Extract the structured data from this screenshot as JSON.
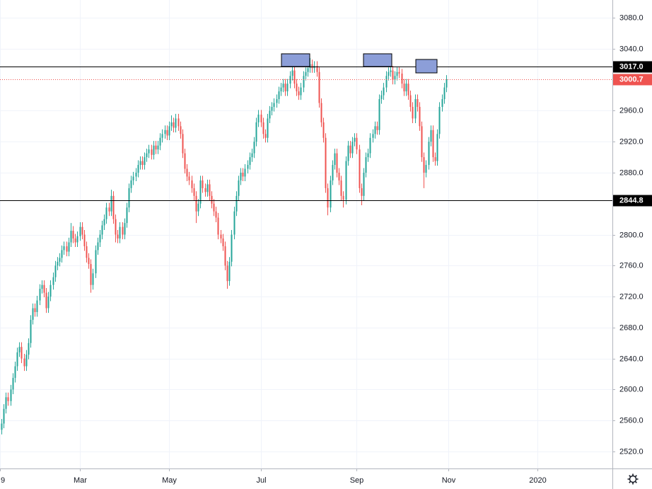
{
  "chart_data": {
    "type": "candlestick",
    "up_color": "#26a69a",
    "down_color": "#ef5350",
    "grid": true,
    "xlim": [
      -0.6,
      273.4
    ],
    "xticks": [
      {
        "value": -0.6,
        "label": "9"
      },
      {
        "value": 35,
        "label": "Mar"
      },
      {
        "value": 75,
        "label": "May"
      },
      {
        "value": 116,
        "label": "Jul"
      },
      {
        "value": 159,
        "label": "Sep"
      },
      {
        "value": 200,
        "label": "Nov"
      },
      {
        "value": 240,
        "label": "2020"
      }
    ],
    "ylim": [
      2498,
      3103
    ],
    "yticks": [
      {
        "value": 3080,
        "label": "3080.0"
      },
      {
        "value": 3040,
        "label": "3040.0"
      },
      {
        "value": 2960,
        "label": "2960.0"
      },
      {
        "value": 2920,
        "label": "2920.0"
      },
      {
        "value": 2880,
        "label": "2880.0"
      },
      {
        "value": 2800,
        "label": "2800.0"
      },
      {
        "value": 2760,
        "label": "2760.0"
      },
      {
        "value": 2720,
        "label": "2720.0"
      },
      {
        "value": 2680,
        "label": "2680.0"
      },
      {
        "value": 2640,
        "label": "2640.0"
      },
      {
        "value": 2600,
        "label": "2600.0"
      },
      {
        "value": 2560,
        "label": "2560.0"
      },
      {
        "value": 2520,
        "label": "2520.0"
      }
    ],
    "price_lines": [
      {
        "value": 3017.0,
        "label": "3017.0",
        "color": "#000000",
        "style": "solid"
      },
      {
        "value": 2844.8,
        "label": "2844.8",
        "color": "#000000",
        "style": "solid"
      },
      {
        "value": 3000.7,
        "label": "3000.7",
        "color": "#ef5350",
        "style": "dotted"
      }
    ],
    "open": [
      2548,
      2556,
      2575,
      2590,
      2585,
      2600,
      2615,
      2630,
      2648,
      2655,
      2640,
      2630,
      2645,
      2660,
      2690,
      2705,
      2700,
      2715,
      2730,
      2735,
      2725,
      2705,
      2720,
      2735,
      2745,
      2760,
      2765,
      2770,
      2780,
      2785,
      2778,
      2790,
      2805,
      2795,
      2790,
      2798,
      2810,
      2800,
      2785,
      2770,
      2762,
      2735,
      2750,
      2780,
      2790,
      2800,
      2812,
      2820,
      2835,
      2830,
      2850,
      2820,
      2800,
      2795,
      2810,
      2800,
      2815,
      2835,
      2860,
      2870,
      2875,
      2880,
      2890,
      2895,
      2890,
      2900,
      2905,
      2910,
      2903,
      2915,
      2910,
      2915,
      2925,
      2930,
      2935,
      2928,
      2940,
      2945,
      2938,
      2950,
      2940,
      2930,
      2905,
      2885,
      2875,
      2870,
      2860,
      2850,
      2830,
      2840,
      2870,
      2860,
      2855,
      2865,
      2850,
      2840,
      2830,
      2822,
      2800,
      2795,
      2785,
      2760,
      2740,
      2765,
      2800,
      2830,
      2850,
      2870,
      2880,
      2875,
      2885,
      2890,
      2900,
      2905,
      2920,
      2945,
      2955,
      2945,
      2930,
      2925,
      2950,
      2960,
      2965,
      2970,
      2975,
      2985,
      2990,
      2995,
      2985,
      2995,
      3005,
      3012,
      2995,
      2985,
      2980,
      2990,
      3005,
      3010,
      3015,
      3020,
      3015,
      3018,
      3010,
      2970,
      2945,
      2925,
      2860,
      2835,
      2870,
      2890,
      2905,
      2880,
      2870,
      2850,
      2845,
      2895,
      2915,
      2905,
      2920,
      2925,
      2910,
      2860,
      2850,
      2880,
      2900,
      2905,
      2925,
      2930,
      2940,
      2935,
      2975,
      2980,
      2990,
      3005,
      3010,
      3012,
      3000,
      3005,
      3010,
      3008,
      2995,
      2985,
      2995,
      2980,
      2965,
      2950,
      2975,
      2965,
      2940,
      2900,
      2880,
      2890,
      2920,
      2935,
      2900,
      2895,
      2930,
      2965,
      2975,
      2990
    ],
    "high": [
      2562,
      2581,
      2596,
      2596,
      2606,
      2621,
      2636,
      2654,
      2661,
      2661,
      2646,
      2651,
      2666,
      2696,
      2711,
      2711,
      2721,
      2736,
      2741,
      2741,
      2731,
      2726,
      2741,
      2751,
      2766,
      2771,
      2776,
      2786,
      2791,
      2791,
      2796,
      2815,
      2811,
      2801,
      2804,
      2816,
      2816,
      2806,
      2791,
      2776,
      2768,
      2756,
      2786,
      2796,
      2806,
      2818,
      2826,
      2841,
      2841,
      2858,
      2856,
      2826,
      2806,
      2816,
      2816,
      2821,
      2841,
      2866,
      2876,
      2881,
      2886,
      2896,
      2901,
      2901,
      2906,
      2911,
      2916,
      2916,
      2921,
      2921,
      2921,
      2931,
      2936,
      2941,
      2941,
      2946,
      2954,
      2951,
      2956,
      2956,
      2946,
      2936,
      2911,
      2891,
      2881,
      2876,
      2866,
      2856,
      2846,
      2876,
      2876,
      2866,
      2871,
      2871,
      2856,
      2846,
      2836,
      2828,
      2806,
      2801,
      2791,
      2766,
      2771,
      2806,
      2836,
      2856,
      2876,
      2886,
      2886,
      2891,
      2896,
      2906,
      2911,
      2926,
      2951,
      2961,
      2961,
      2951,
      2936,
      2956,
      2966,
      2971,
      2976,
      2981,
      2991,
      2996,
      3001,
      3001,
      3001,
      3011,
      3018,
      3018,
      3001,
      2991,
      2996,
      3011,
      3016,
      3021,
      3028,
      3026,
      3024,
      3024,
      3016,
      2976,
      2951,
      2931,
      2866,
      2876,
      2896,
      2911,
      2911,
      2886,
      2876,
      2856,
      2901,
      2921,
      2921,
      2926,
      2931,
      2931,
      2916,
      2866,
      2886,
      2906,
      2911,
      2931,
      2936,
      2946,
      2946,
      2981,
      2986,
      2996,
      3011,
      3016,
      3018,
      3018,
      3011,
      3016,
      3016,
      3014,
      3001,
      3001,
      3001,
      2986,
      2971,
      2981,
      2981,
      2971,
      2946,
      2906,
      2896,
      2926,
      2941,
      2941,
      2906,
      2936,
      2971,
      2981,
      2996,
      3006
    ],
    "low": [
      2542,
      2550,
      2569,
      2579,
      2579,
      2594,
      2609,
      2624,
      2642,
      2634,
      2624,
      2624,
      2639,
      2654,
      2684,
      2694,
      2694,
      2709,
      2724,
      2719,
      2699,
      2699,
      2714,
      2729,
      2739,
      2754,
      2759,
      2764,
      2774,
      2772,
      2772,
      2784,
      2789,
      2784,
      2784,
      2792,
      2794,
      2779,
      2764,
      2756,
      2725,
      2729,
      2744,
      2774,
      2784,
      2794,
      2806,
      2814,
      2824,
      2824,
      2814,
      2790,
      2789,
      2789,
      2794,
      2794,
      2809,
      2829,
      2854,
      2864,
      2869,
      2874,
      2884,
      2884,
      2884,
      2894,
      2899,
      2897,
      2897,
      2904,
      2904,
      2909,
      2919,
      2924,
      2922,
      2922,
      2934,
      2932,
      2932,
      2934,
      2924,
      2899,
      2879,
      2869,
      2864,
      2854,
      2844,
      2815,
      2824,
      2834,
      2854,
      2849,
      2849,
      2844,
      2834,
      2824,
      2816,
      2794,
      2789,
      2779,
      2754,
      2730,
      2734,
      2759,
      2794,
      2824,
      2844,
      2864,
      2869,
      2869,
      2879,
      2884,
      2894,
      2899,
      2914,
      2939,
      2939,
      2924,
      2919,
      2919,
      2944,
      2954,
      2959,
      2964,
      2969,
      2979,
      2984,
      2979,
      2979,
      2989,
      2999,
      2989,
      2979,
      2974,
      2974,
      2984,
      2999,
      3004,
      3009,
      3009,
      3009,
      3004,
      2964,
      2939,
      2919,
      2854,
      2825,
      2829,
      2864,
      2884,
      2874,
      2864,
      2844,
      2835,
      2839,
      2889,
      2899,
      2899,
      2914,
      2904,
      2854,
      2838,
      2844,
      2874,
      2894,
      2899,
      2919,
      2924,
      2929,
      2929,
      2969,
      2974,
      2984,
      2999,
      3004,
      2994,
      2994,
      2999,
      3002,
      2989,
      2979,
      2979,
      2974,
      2959,
      2944,
      2944,
      2959,
      2934,
      2894,
      2860,
      2874,
      2884,
      2914,
      2894,
      2889,
      2889,
      2924,
      2959,
      2969,
      2984
    ],
    "close": [
      2556,
      2575,
      2590,
      2585,
      2600,
      2615,
      2630,
      2648,
      2655,
      2640,
      2630,
      2645,
      2660,
      2690,
      2705,
      2700,
      2715,
      2730,
      2735,
      2725,
      2705,
      2720,
      2735,
      2745,
      2760,
      2765,
      2770,
      2780,
      2785,
      2778,
      2790,
      2805,
      2795,
      2790,
      2798,
      2810,
      2800,
      2785,
      2770,
      2762,
      2735,
      2750,
      2780,
      2790,
      2800,
      2812,
      2820,
      2835,
      2830,
      2850,
      2820,
      2800,
      2795,
      2810,
      2800,
      2815,
      2835,
      2860,
      2870,
      2875,
      2880,
      2890,
      2895,
      2890,
      2900,
      2905,
      2910,
      2903,
      2915,
      2910,
      2915,
      2925,
      2930,
      2935,
      2928,
      2940,
      2945,
      2938,
      2950,
      2940,
      2930,
      2905,
      2885,
      2875,
      2870,
      2860,
      2850,
      2830,
      2840,
      2870,
      2860,
      2855,
      2865,
      2850,
      2840,
      2830,
      2822,
      2800,
      2795,
      2785,
      2760,
      2740,
      2765,
      2800,
      2830,
      2850,
      2870,
      2880,
      2875,
      2885,
      2890,
      2900,
      2905,
      2920,
      2945,
      2955,
      2945,
      2930,
      2925,
      2950,
      2960,
      2965,
      2970,
      2975,
      2985,
      2990,
      2995,
      2985,
      2995,
      3005,
      3012,
      2995,
      2985,
      2980,
      2990,
      3005,
      3010,
      3015,
      3020,
      3015,
      3018,
      3010,
      2970,
      2945,
      2925,
      2860,
      2835,
      2870,
      2890,
      2905,
      2880,
      2870,
      2850,
      2845,
      2895,
      2915,
      2905,
      2920,
      2925,
      2910,
      2860,
      2850,
      2880,
      2900,
      2905,
      2925,
      2930,
      2940,
      2935,
      2975,
      2980,
      2990,
      3005,
      3010,
      3012,
      3000,
      3005,
      3010,
      3008,
      2995,
      2985,
      2995,
      2980,
      2965,
      2950,
      2975,
      2965,
      2940,
      2900,
      2880,
      2890,
      2920,
      2935,
      2900,
      2895,
      2930,
      2965,
      2975,
      2990,
      3000.7
    ]
  }
}
